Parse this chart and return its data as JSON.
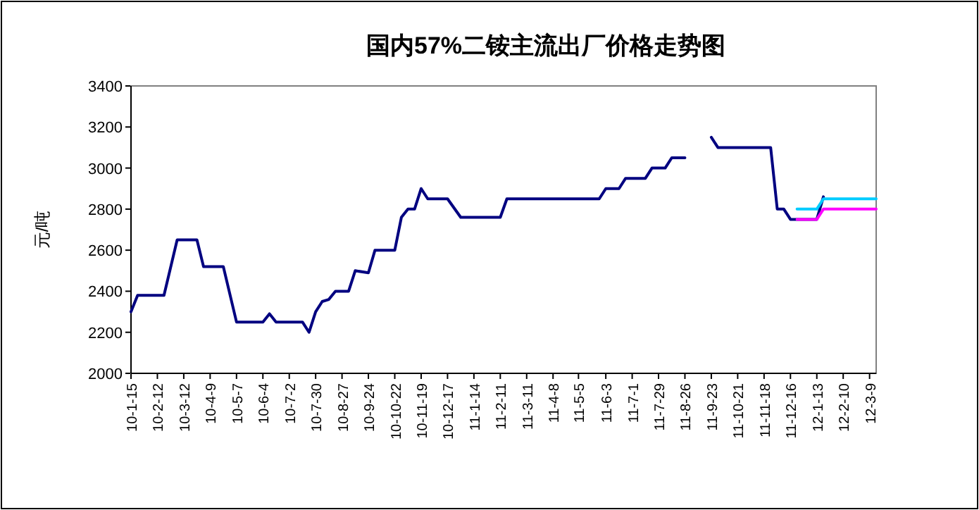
{
  "chart_data": {
    "type": "line",
    "title": "国内57%二铵主流出厂价格走势图",
    "ylabel": "元/吨",
    "xlim": [
      "2010-01-15",
      "2012-03-16"
    ],
    "ylim": [
      2000,
      3400
    ],
    "yticks": [
      2000,
      2200,
      2400,
      2600,
      2800,
      3000,
      3200,
      3400
    ],
    "xticks": [
      {
        "value": "2010-01-15",
        "label": "10-1-15"
      },
      {
        "value": "2010-02-12",
        "label": "10-2-12"
      },
      {
        "value": "2010-03-12",
        "label": "10-3-12"
      },
      {
        "value": "2010-04-09",
        "label": "10-4-9"
      },
      {
        "value": "2010-05-07",
        "label": "10-5-7"
      },
      {
        "value": "2010-06-04",
        "label": "10-6-4"
      },
      {
        "value": "2010-07-02",
        "label": "10-7-2"
      },
      {
        "value": "2010-07-30",
        "label": "10-7-30"
      },
      {
        "value": "2010-08-27",
        "label": "10-8-27"
      },
      {
        "value": "2010-09-24",
        "label": "10-9-24"
      },
      {
        "value": "2010-10-22",
        "label": "10-10-22"
      },
      {
        "value": "2010-11-19",
        "label": "10-11-19"
      },
      {
        "value": "2010-12-17",
        "label": "10-12-17"
      },
      {
        "value": "2011-01-14",
        "label": "11-1-14"
      },
      {
        "value": "2011-02-11",
        "label": "11-2-11"
      },
      {
        "value": "2011-03-11",
        "label": "11-3-11"
      },
      {
        "value": "2011-04-08",
        "label": "11-4-8"
      },
      {
        "value": "2011-05-05",
        "label": "11-5-5"
      },
      {
        "value": "2011-06-03",
        "label": "11-6-3"
      },
      {
        "value": "2011-07-01",
        "label": "11-7-1"
      },
      {
        "value": "2011-07-29",
        "label": "11-7-29"
      },
      {
        "value": "2011-08-26",
        "label": "11-8-26"
      },
      {
        "value": "2011-09-23",
        "label": "11-9-23"
      },
      {
        "value": "2011-10-21",
        "label": "11-10-21"
      },
      {
        "value": "2011-11-18",
        "label": "11-11-18"
      },
      {
        "value": "2011-12-16",
        "label": "11-12-16"
      },
      {
        "value": "2012-01-13",
        "label": "12-1-13"
      },
      {
        "value": "2012-02-10",
        "label": "12-2-10"
      },
      {
        "value": "2012-03-09",
        "label": "12-3-9"
      }
    ],
    "series": [
      {
        "color": "#000080",
        "x": [
          "2010-01-15",
          "2010-01-22",
          "2010-02-19",
          "2010-03-05",
          "2010-03-26",
          "2010-04-02",
          "2010-04-23",
          "2010-05-07",
          "2010-06-04",
          "2010-06-11",
          "2010-06-18",
          "2010-07-16",
          "2010-07-23",
          "2010-07-30",
          "2010-08-06",
          "2010-08-13",
          "2010-08-20",
          "2010-09-03",
          "2010-09-10",
          "2010-09-24",
          "2010-10-01",
          "2010-10-22",
          "2010-10-29",
          "2010-11-05",
          "2010-11-12",
          "2010-11-19",
          "2010-11-26",
          "2010-12-17",
          "2010-12-31",
          "2011-02-11",
          "2011-02-18",
          "2011-05-27",
          "2011-06-03",
          "2011-06-17",
          "2011-06-24",
          "2011-07-15",
          "2011-07-22",
          "2011-08-05",
          "2011-08-12",
          "2011-08-26",
          "2011-09-02",
          "2011-09-23",
          "2011-09-30",
          "2011-11-25",
          "2011-12-02",
          "2011-12-09",
          "2011-12-16",
          "2012-01-13",
          "2012-01-20"
        ],
        "values": [
          2300,
          2380,
          2380,
          2650,
          2650,
          2520,
          2520,
          2250,
          2250,
          2290,
          2250,
          2250,
          2200,
          2300,
          2350,
          2360,
          2400,
          2400,
          2500,
          2490,
          2600,
          2600,
          2760,
          2800,
          2800,
          2900,
          2850,
          2850,
          2760,
          2760,
          2850,
          2850,
          2900,
          2900,
          2950,
          2950,
          3000,
          3000,
          3050,
          3050,
          null,
          3150,
          3100,
          3100,
          2800,
          2800,
          2750,
          2750,
          2860
        ]
      },
      {
        "color": "#ff00ff",
        "x": [
          "2011-12-23",
          "2012-01-13",
          "2012-01-20",
          "2012-03-16"
        ],
        "values": [
          2750,
          2750,
          2800,
          2800
        ]
      },
      {
        "color": "#00ccff",
        "x": [
          "2011-12-23",
          "2012-01-13",
          "2012-01-20",
          "2012-03-16"
        ],
        "values": [
          2800,
          2800,
          2850,
          2850
        ]
      }
    ]
  }
}
